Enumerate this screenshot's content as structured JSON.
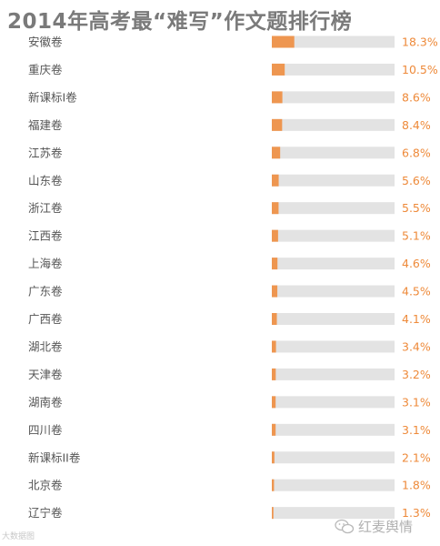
{
  "page": {
    "title": "2014年高考最“难写”作文题排行榜",
    "watermark_left": "大数据图",
    "watermark_right": "红麦舆情"
  },
  "colors": {
    "bar": "#ee9650",
    "track": "#e3e3e3",
    "value_text": "#ee8a3a",
    "title": "#7a7a7a"
  },
  "icons": {
    "watermark": "wechat-icon"
  },
  "chart_data": {
    "type": "bar",
    "orientation": "horizontal",
    "title": "2014年高考最“难写”作文题排行榜",
    "categories": [
      "安徽卷",
      "重庆卷",
      "新课标I卷",
      "福建卷",
      "江苏卷",
      "山东卷",
      "浙江卷",
      "江西卷",
      "上海卷",
      "广东卷",
      "广西卷",
      "湖北卷",
      "天津卷",
      "湖南卷",
      "四川卷",
      "新课标II卷",
      "北京卷",
      "辽宁卷"
    ],
    "values": [
      18.3,
      10.5,
      8.6,
      8.4,
      6.8,
      5.6,
      5.5,
      5.1,
      4.6,
      4.5,
      4.1,
      3.4,
      3.2,
      3.1,
      3.1,
      2.1,
      1.8,
      1.3
    ],
    "value_labels": [
      "18.3%",
      "10.5%",
      "8.6%",
      "8.4%",
      "6.8%",
      "5.6%",
      "5.5%",
      "5.1%",
      "4.6%",
      "4.5%",
      "4.1%",
      "3.4%",
      "3.2%",
      "3.1%",
      "3.1%",
      "2.1%",
      "1.8%",
      "1.3%"
    ],
    "xlim": [
      0,
      100
    ],
    "grid": false,
    "legend": "none"
  }
}
